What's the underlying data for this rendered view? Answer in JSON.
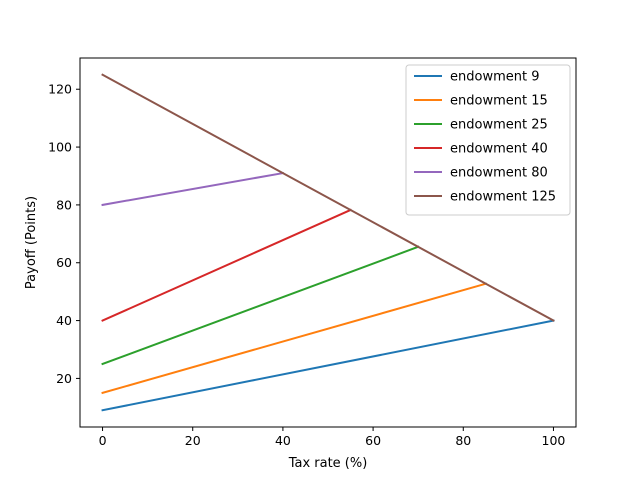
{
  "chart_data": {
    "type": "line",
    "title": "",
    "xlabel": "Tax rate (%)",
    "ylabel": "Payoff (Points)",
    "xlim": [
      -5,
      105
    ],
    "ylim": [
      3.2,
      130.8
    ],
    "xticks": [
      0,
      20,
      40,
      60,
      80,
      100
    ],
    "yticks": [
      20,
      40,
      60,
      80,
      100,
      120
    ],
    "grid": false,
    "legend_position": "top-right",
    "series": [
      {
        "name": "endowment 9",
        "color": "#1f77b4",
        "x": [
          0,
          100
        ],
        "y": [
          9,
          40
        ]
      },
      {
        "name": "endowment 15",
        "color": "#ff7f0e",
        "x": [
          0,
          85
        ],
        "y": [
          15,
          52.75
        ]
      },
      {
        "name": "endowment 25",
        "color": "#2ca02c",
        "x": [
          0,
          70
        ],
        "y": [
          25,
          65.5
        ]
      },
      {
        "name": "endowment 40",
        "color": "#d62728",
        "x": [
          0,
          55
        ],
        "y": [
          40,
          78.25
        ]
      },
      {
        "name": "endowment 80",
        "color": "#9467bd",
        "x": [
          0,
          40
        ],
        "y": [
          80,
          91
        ]
      },
      {
        "name": "endowment 125",
        "color": "#8c564b",
        "x": [
          0,
          100
        ],
        "y": [
          125,
          40
        ]
      }
    ]
  }
}
